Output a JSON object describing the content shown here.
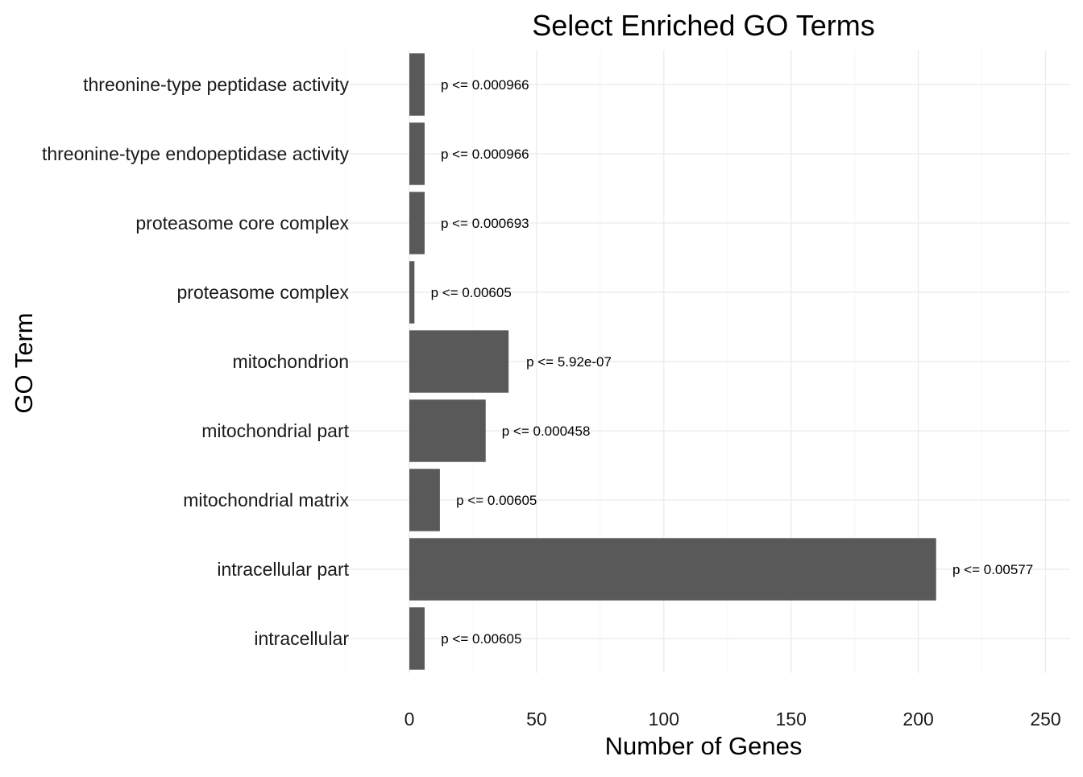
{
  "chart_data": {
    "type": "bar",
    "orientation": "horizontal",
    "title": "Select Enriched GO Terms",
    "xlabel": "Number of Genes",
    "ylabel": "GO Term",
    "xlim": [
      -25,
      260
    ],
    "xticks": [
      0,
      50,
      100,
      150,
      200,
      250
    ],
    "xtick_labels": [
      "0",
      "50",
      "100",
      "150",
      "200",
      "250"
    ],
    "grid": true,
    "legend": "none",
    "bar_color": "#595959",
    "categories": [
      "threonine-type peptidase activity",
      "threonine-type endopeptidase activity",
      "proteasome core complex",
      "proteasome complex",
      "mitochondrion",
      "mitochondrial part",
      "mitochondrial matrix",
      "intracellular part",
      "intracellular"
    ],
    "values": [
      6,
      6,
      6,
      2,
      39,
      30,
      12,
      207,
      6
    ],
    "annotations": [
      "p <= 0.000966",
      "p <= 0.000966",
      "p <= 0.000693",
      "p <= 0.00605",
      "p <= 5.92e-07",
      "p <= 0.000458",
      "p <= 0.00605",
      "p <= 0.00577",
      "p <= 0.00605"
    ]
  }
}
